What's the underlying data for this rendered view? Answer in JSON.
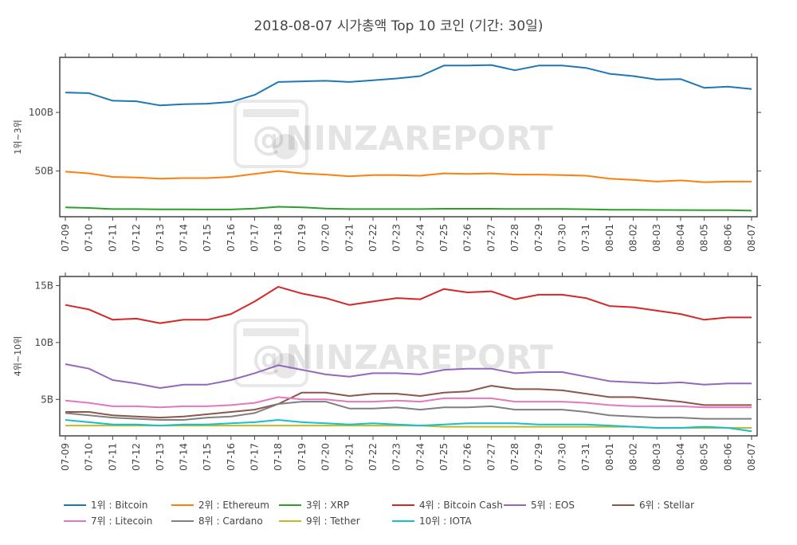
{
  "chart_data": {
    "type": "line",
    "title": "2018-08-07 시가총액 Top 10 코인 (기간: 30일)",
    "watermark": "@NINZAREPORT",
    "x": [
      "07-09",
      "07-10",
      "07-11",
      "07-12",
      "07-13",
      "07-14",
      "07-15",
      "07-16",
      "07-17",
      "07-18",
      "07-19",
      "07-20",
      "07-21",
      "07-22",
      "07-23",
      "07-24",
      "07-25",
      "07-26",
      "07-27",
      "07-28",
      "07-29",
      "07-30",
      "07-31",
      "08-01",
      "08-02",
      "08-03",
      "08-04",
      "08-05",
      "08-06",
      "08-07"
    ],
    "x_is_date": true,
    "grid": false,
    "legend_position": "bottom",
    "panels": [
      {
        "ylabel": "1위~3위",
        "ylim": [
          11,
          147
        ],
        "yticks": [
          {
            "value": 50,
            "label": "50B"
          },
          {
            "value": 100,
            "label": "100B"
          }
        ],
        "series_indices": [
          0,
          1,
          2
        ]
      },
      {
        "ylabel": "4위~10위",
        "ylim": [
          1.8,
          15.8
        ],
        "yticks": [
          {
            "value": 5,
            "label": "5B"
          },
          {
            "value": 10,
            "label": "10B"
          },
          {
            "value": 15,
            "label": "15B"
          }
        ],
        "series_indices": [
          3,
          4,
          5,
          6,
          7,
          8,
          9
        ]
      }
    ],
    "series": [
      {
        "name": "1위 : Bitcoin",
        "color": "#1f77b4",
        "values": [
          117,
          116.5,
          110,
          109.5,
          106,
          107,
          107.5,
          109,
          115,
          126,
          126.5,
          127,
          126,
          127.5,
          129,
          131,
          140,
          140,
          140.5,
          136,
          140,
          140,
          138,
          133,
          131,
          128,
          128.5,
          121,
          122,
          120
        ]
      },
      {
        "name": "2위 : Ethereum",
        "color": "#ff7f0e",
        "values": [
          49.5,
          48,
          45,
          44.5,
          43.5,
          44,
          44,
          45,
          47.5,
          50,
          48,
          47,
          45.5,
          46.5,
          46.5,
          46,
          48,
          47.5,
          48,
          47,
          47,
          46.5,
          46,
          43.5,
          42.5,
          41,
          42,
          40.5,
          41,
          41
        ]
      },
      {
        "name": "3위 : XRP",
        "color": "#2ca02c",
        "values": [
          19,
          18.5,
          17.5,
          17.5,
          17.3,
          17.3,
          17.2,
          17.2,
          18,
          19.5,
          19,
          18,
          17.5,
          17.5,
          17.5,
          17.5,
          17.8,
          17.8,
          17.8,
          17.6,
          17.6,
          17.6,
          17.4,
          17,
          16.9,
          16.8,
          16.7,
          16.6,
          16.6,
          16.2
        ]
      },
      {
        "name": "4위 : Bitcoin Cash",
        "color": "#d62728",
        "values": [
          13.3,
          12.9,
          12,
          12.1,
          11.7,
          12,
          12,
          12.5,
          13.6,
          14.9,
          14.3,
          13.9,
          13.3,
          13.6,
          13.9,
          13.8,
          14.7,
          14.4,
          14.5,
          13.8,
          14.2,
          14.2,
          13.9,
          13.2,
          13.1,
          12.8,
          12.5,
          12,
          12.2,
          12.2
        ]
      },
      {
        "name": "5위 : EOS",
        "color": "#9467bd",
        "values": [
          8.1,
          7.7,
          6.7,
          6.4,
          6,
          6.3,
          6.3,
          6.7,
          7.3,
          8,
          7.6,
          7.2,
          7,
          7.3,
          7.3,
          7.2,
          7.6,
          7.7,
          7.7,
          7.3,
          7.4,
          7.4,
          7,
          6.6,
          6.5,
          6.4,
          6.5,
          6.3,
          6.4,
          6.4
        ]
      },
      {
        "name": "6위 : Stellar",
        "color": "#8c564b",
        "values": [
          3.9,
          3.9,
          3.6,
          3.5,
          3.4,
          3.5,
          3.7,
          3.9,
          4.1,
          4.6,
          5.6,
          5.6,
          5.3,
          5.5,
          5.5,
          5.3,
          5.6,
          5.7,
          6.2,
          5.9,
          5.9,
          5.8,
          5.5,
          5.2,
          5.2,
          5,
          4.8,
          4.5,
          4.5,
          4.5
        ]
      },
      {
        "name": "7위 : Litecoin",
        "color": "#e377c2",
        "values": [
          4.9,
          4.7,
          4.4,
          4.4,
          4.3,
          4.4,
          4.4,
          4.5,
          4.7,
          5.2,
          5,
          5,
          4.8,
          4.8,
          4.9,
          4.8,
          5.1,
          5.1,
          5.1,
          4.8,
          4.8,
          4.8,
          4.7,
          4.5,
          4.4,
          4.4,
          4.4,
          4.3,
          4.3,
          4.3
        ]
      },
      {
        "name": "8위 : Cardano",
        "color": "#7f7f7f",
        "values": [
          3.8,
          3.6,
          3.4,
          3.3,
          3.2,
          3.2,
          3.4,
          3.5,
          3.8,
          4.6,
          4.8,
          4.8,
          4.2,
          4.2,
          4.3,
          4.1,
          4.3,
          4.3,
          4.4,
          4.1,
          4.1,
          4.1,
          3.9,
          3.6,
          3.5,
          3.4,
          3.4,
          3.3,
          3.3,
          3.3
        ]
      },
      {
        "name": "9위 : Tether",
        "color": "#bcbd22",
        "values": [
          2.7,
          2.7,
          2.7,
          2.7,
          2.7,
          2.7,
          2.7,
          2.7,
          2.7,
          2.7,
          2.7,
          2.7,
          2.7,
          2.7,
          2.7,
          2.7,
          2.6,
          2.6,
          2.6,
          2.6,
          2.6,
          2.6,
          2.6,
          2.6,
          2.6,
          2.5,
          2.5,
          2.5,
          2.5,
          2.5
        ]
      },
      {
        "name": "10위 : IOTA",
        "color": "#17becf",
        "values": [
          3.2,
          3,
          2.8,
          2.8,
          2.7,
          2.8,
          2.8,
          2.9,
          3,
          3.2,
          3,
          2.9,
          2.8,
          2.9,
          2.8,
          2.7,
          2.8,
          2.9,
          2.9,
          2.9,
          2.8,
          2.8,
          2.8,
          2.7,
          2.6,
          2.5,
          2.5,
          2.6,
          2.5,
          2.2
        ]
      }
    ]
  }
}
